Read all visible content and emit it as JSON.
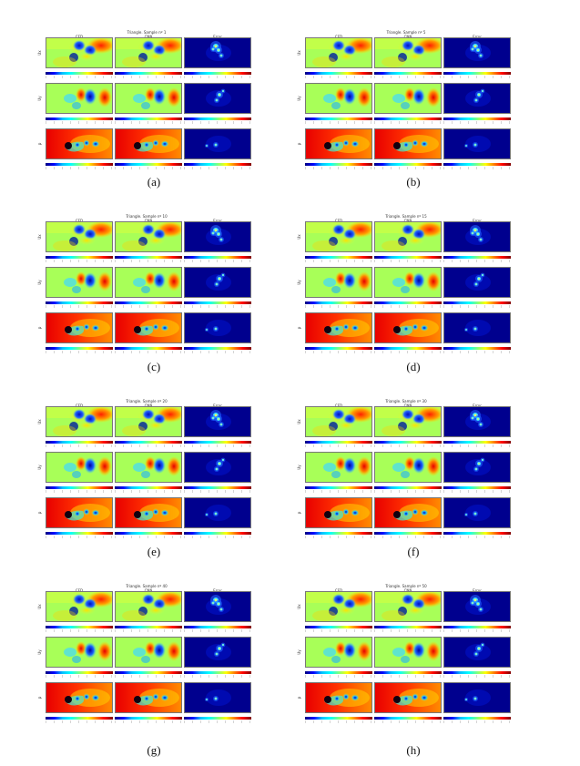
{
  "figure": {
    "column_headers": [
      "CFD",
      "CNN",
      "Error"
    ],
    "row_labels": [
      "Ux",
      "Uy",
      "p"
    ],
    "panels": [
      {
        "title": "Triangle. Sample nº 1",
        "caption": "(a)"
      },
      {
        "title": "Triangle. Sample nº 5",
        "caption": "(b)"
      },
      {
        "title": "Triangle. Sample nº 10",
        "caption": "(c)"
      },
      {
        "title": "Triangle. Sample nº 15",
        "caption": "(d)"
      },
      {
        "title": "Triangle. Sample nº 20",
        "caption": "(e)"
      },
      {
        "title": "Triangle. Sample nº 30",
        "caption": "(f)"
      },
      {
        "title": "Triangle. Sample nº 40",
        "caption": "(g)"
      },
      {
        "title": "Triangle. Sample nº 50",
        "caption": "(h)"
      }
    ],
    "colormap": [
      "#00007f",
      "#0000ff",
      "#00bfff",
      "#00ffff",
      "#7fff7f",
      "#ffff00",
      "#ff7f00",
      "#ff0000",
      "#7f0000"
    ]
  }
}
